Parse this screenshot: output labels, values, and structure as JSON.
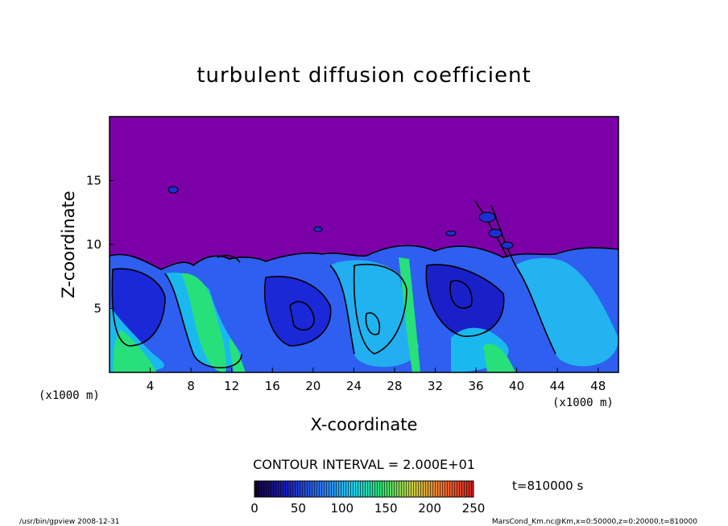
{
  "chart_data": {
    "type": "heatmap",
    "title": "turbulent diffusion coefficient",
    "xlabel": "X-coordinate",
    "ylabel": "Z-coordinate",
    "x_unit_label": "(x1000 m)",
    "z_unit_label": "(x1000 m)",
    "xlim": [
      0,
      50
    ],
    "zlim": [
      0,
      20
    ],
    "x_ticks": [
      "4",
      "8",
      "12",
      "16",
      "20",
      "24",
      "28",
      "32",
      "36",
      "40",
      "44",
      "48"
    ],
    "z_ticks": [
      "5",
      "10",
      "15"
    ],
    "contour_interval_label": "CONTOUR INTERVAL = 2.000E+01",
    "colorbar": {
      "min": 0,
      "max": 250,
      "ticks": [
        "0",
        "50",
        "100",
        "150",
        "200",
        "250"
      ]
    },
    "background_value_color": "#7b00a8",
    "time_label": "t=810000 s",
    "footer_left": "/usr/bin/gpview  2008-12-31",
    "footer_right": "MarsCond_Km.nc@Km,x=0:50000,z=0:20000,t=810000"
  },
  "colors": {
    "background": "#7b00a8",
    "deep_blue": "#1a20d0",
    "mid_blue": "#2e6ff0",
    "cyan": "#19b9f0",
    "green": "#27e07a",
    "contour": "#000000"
  }
}
